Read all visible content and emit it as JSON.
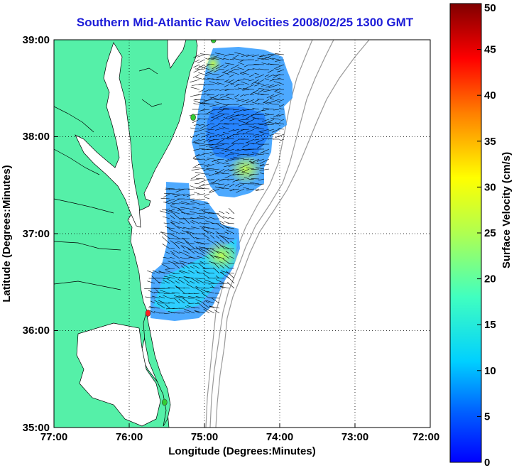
{
  "title": "Southern Mid-Atlantic Raw Velocities 2008/02/25 1300 GMT",
  "map": {
    "xlabel": "Longitude (Degrees:Minutes)",
    "ylabel": "Latitude (Degrees:Minutes)",
    "lon_range": [
      -77,
      -72
    ],
    "lat_range": [
      35,
      39
    ],
    "lon_ticks": [
      "77:00",
      "76:00",
      "75:00",
      "74:00",
      "73:00",
      "72:00"
    ],
    "lat_ticks": [
      "35:00",
      "36:00",
      "37:00",
      "38:00",
      "39:00"
    ],
    "grid": "dotted",
    "land_color": "#55f0a8",
    "ocean_color": "#ffffff",
    "bathymetry_color": "#9a9a9a",
    "stations": [
      {
        "name": "station-a",
        "lon": -74.88,
        "lat": 39.0,
        "color": "#33cc33"
      },
      {
        "name": "station-b",
        "lon": -75.15,
        "lat": 38.2,
        "color": "#33cc33"
      },
      {
        "name": "station-c",
        "lon": -75.75,
        "lat": 36.18,
        "color": "#ff2020"
      },
      {
        "name": "station-d",
        "lon": -75.53,
        "lat": 35.26,
        "color": "#33cc33"
      }
    ]
  },
  "colorbar": {
    "label": "Surface Velocity (cm/s)",
    "min": 0,
    "max": 50,
    "ticks": [
      "0",
      "5",
      "10",
      "15",
      "20",
      "25",
      "30",
      "35",
      "40",
      "45",
      "50"
    ],
    "colormap": "jet"
  }
}
